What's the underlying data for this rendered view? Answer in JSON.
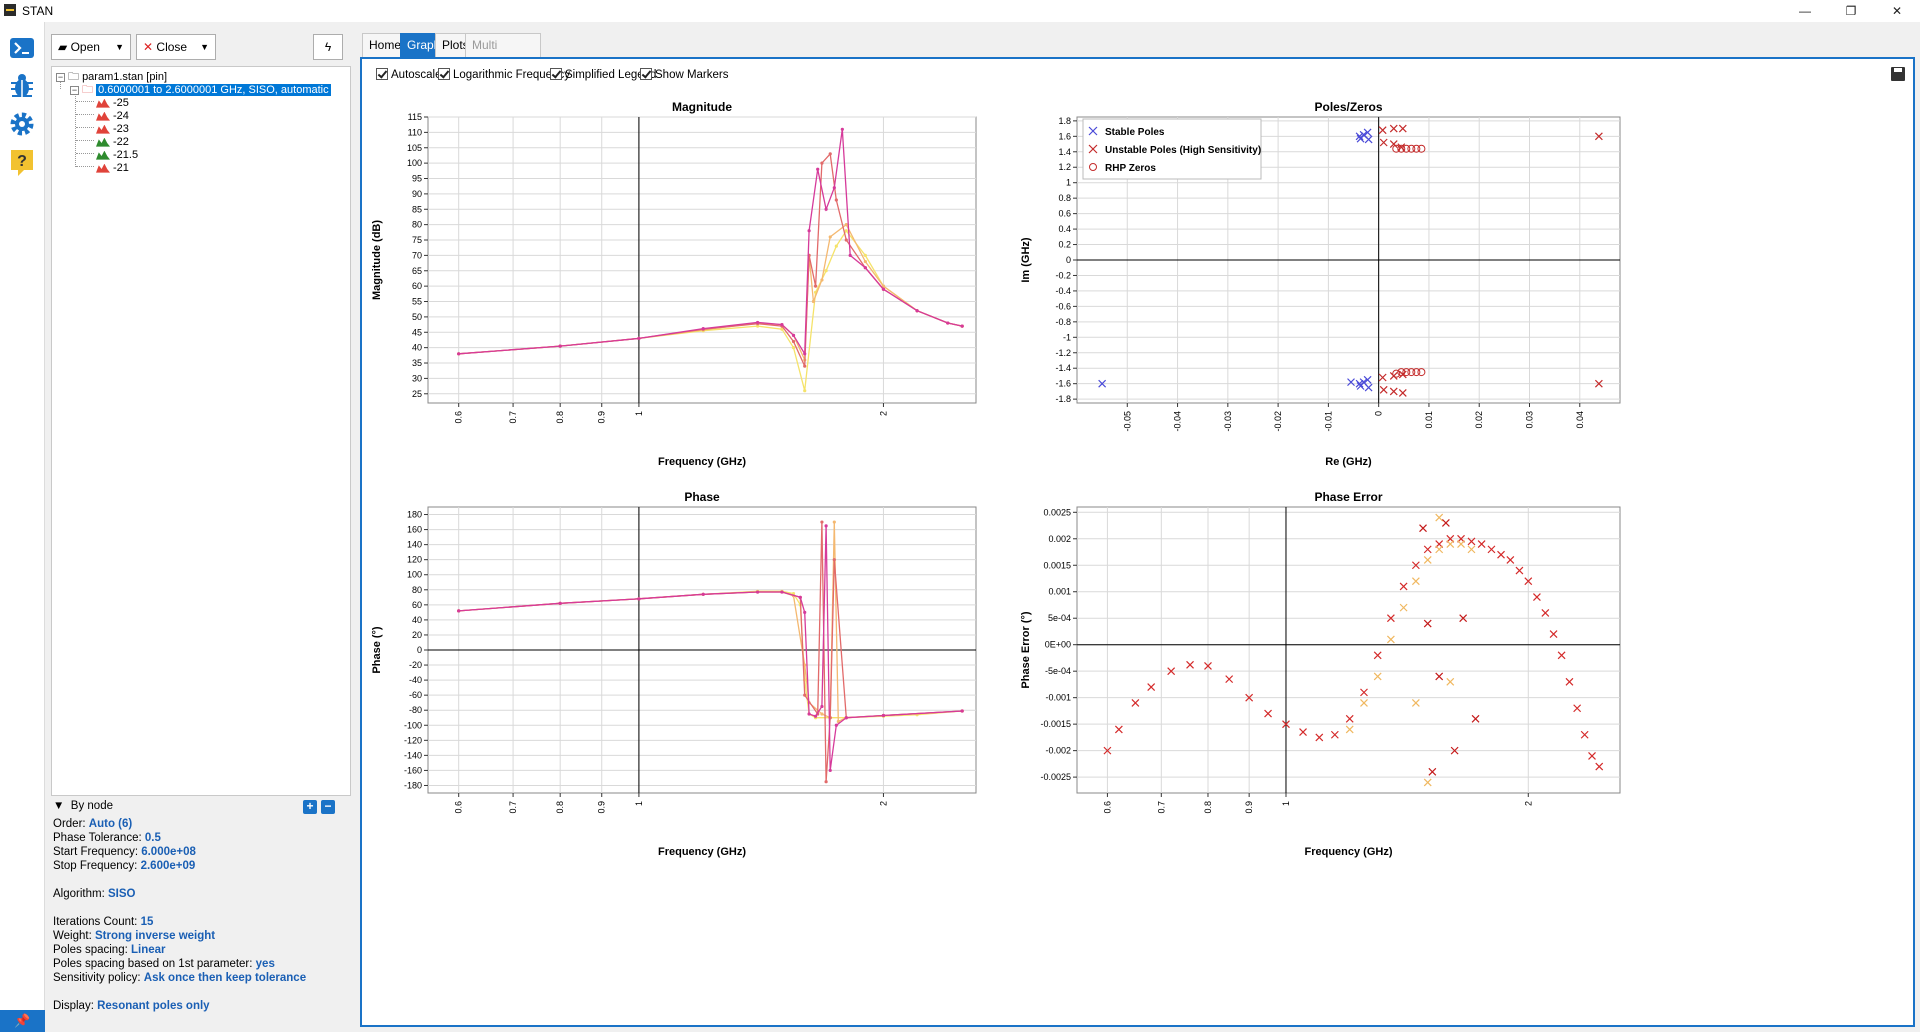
{
  "window": {
    "title": "STAN"
  },
  "toolbar": {
    "open_label": "Open",
    "close_label": "Close"
  },
  "tree": {
    "root_label": "param1.stan [pin]",
    "child_label": "0.6000001 to 2.6000001 GHz, SISO, automatic",
    "leaves": [
      {
        "label": "-25",
        "color": "#e0433a"
      },
      {
        "label": "-24",
        "color": "#e0433a"
      },
      {
        "label": "-23",
        "color": "#e0433a"
      },
      {
        "label": "-22",
        "color": "#2e8b2e"
      },
      {
        "label": "-21.5",
        "color": "#2e8b2e"
      },
      {
        "label": "-21",
        "color": "#e0433a"
      }
    ]
  },
  "filter": {
    "label": "By node"
  },
  "props": {
    "order": {
      "label": "Order:",
      "value": "Auto (6)"
    },
    "phase_tol": {
      "label": "Phase Tolerance:",
      "value": "0.5"
    },
    "start": {
      "label": "Start Frequency:",
      "value": "6.000e+08"
    },
    "stop": {
      "label": "Stop Frequency:",
      "value": "2.600e+09"
    },
    "algorithm": {
      "label": "Algorithm:",
      "value": "SISO"
    },
    "iterations": {
      "label": "Iterations Count:",
      "value": "15"
    },
    "weight": {
      "label": "Weight:",
      "value": "Strong inverse weight"
    },
    "poles_spacing": {
      "label": "Poles spacing:",
      "value": "Linear"
    },
    "poles_first": {
      "label": "Poles spacing based on 1st parameter:",
      "value": "yes"
    },
    "sensitivity": {
      "label": "Sensitivity policy:",
      "value": "Ask once then keep tolerance"
    },
    "display": {
      "label": "Display:",
      "value": "Resonant poles only"
    }
  },
  "tabs": [
    {
      "label": "Home",
      "state": "normal"
    },
    {
      "label": "Graphs",
      "state": "active"
    },
    {
      "label": "Plots",
      "state": "normal"
    },
    {
      "label": "Multi Parameters",
      "state": "disabled"
    }
  ],
  "options": [
    {
      "label": "Autoscale",
      "checked": true
    },
    {
      "label": "Logarithmic Frequency",
      "checked": true
    },
    {
      "label": "Simplified Legend",
      "checked": true
    },
    {
      "label": "Show Markers",
      "checked": true
    }
  ],
  "colors": {
    "accent": "#1a73c7",
    "series": [
      "#f5e36a",
      "#f4b870",
      "#e26a6a",
      "#d63a9a",
      "#c41a1a"
    ]
  },
  "chart_data": [
    {
      "type": "line",
      "title": "Magnitude",
      "xlabel": "Frequency (GHz)",
      "ylabel": "Magnitude (dB)",
      "x_scale": "log",
      "xlim": [
        0.55,
        2.6
      ],
      "ylim": [
        22,
        115
      ],
      "xticks": [
        "0.6",
        "0.7",
        "0.8",
        "0.9",
        "1",
        "2"
      ],
      "xtick_values": [
        0.6,
        0.7,
        0.8,
        0.9,
        1,
        2
      ],
      "yticks": [
        115,
        110,
        105,
        100,
        95,
        90,
        85,
        80,
        75,
        70,
        65,
        60,
        55,
        50,
        45,
        40,
        35,
        30,
        25
      ],
      "grid": true,
      "series": [
        {
          "values_x": [
            0.6,
            0.8,
            1.0,
            1.2,
            1.4,
            1.5,
            1.55,
            1.6,
            1.65,
            1.7,
            1.75,
            1.8,
            1.9,
            2.0,
            2.2,
            2.4,
            2.5
          ],
          "values_y": [
            38,
            40.5,
            43,
            45.5,
            47,
            46,
            40,
            26,
            58,
            65,
            73,
            78,
            70,
            60,
            52,
            48,
            47
          ]
        },
        {
          "values_x": [
            0.6,
            0.8,
            1.0,
            1.2,
            1.4,
            1.5,
            1.55,
            1.6,
            1.62,
            1.64,
            1.68,
            1.72,
            1.8,
            1.9,
            2.0,
            2.2,
            2.4,
            2.5
          ],
          "values_y": [
            38,
            40.5,
            43,
            45.8,
            48,
            47.5,
            44,
            36,
            70,
            55,
            62,
            76,
            80,
            68,
            60,
            52,
            48,
            47
          ]
        },
        {
          "values_x": [
            0.6,
            0.8,
            1.0,
            1.2,
            1.4,
            1.5,
            1.55,
            1.6,
            1.62,
            1.65,
            1.68,
            1.72,
            1.75,
            1.8,
            1.9,
            2.0,
            2.2,
            2.4,
            2.5
          ],
          "values_y": [
            38,
            40.5,
            43,
            46,
            47.8,
            47,
            42,
            34,
            70,
            60,
            100,
            103,
            88,
            75,
            66,
            59,
            52,
            48,
            47
          ]
        },
        {
          "values_x": [
            0.6,
            0.8,
            1.0,
            1.2,
            1.4,
            1.5,
            1.55,
            1.6,
            1.62,
            1.66,
            1.7,
            1.74,
            1.78,
            1.82,
            1.9,
            2.0,
            2.2,
            2.4,
            2.5
          ],
          "values_y": [
            38,
            40.5,
            43,
            46.2,
            48.2,
            47.5,
            44,
            38,
            78,
            98,
            85,
            92,
            111,
            70,
            66,
            59,
            52,
            48,
            47
          ]
        }
      ]
    },
    {
      "type": "scatter",
      "title": "Poles/Zeros",
      "xlabel": "Re (GHz)",
      "ylabel": "Im (GHz)",
      "xlim": [
        -0.06,
        0.048
      ],
      "ylim": [
        -1.85,
        1.85
      ],
      "xticks": [
        -0.05,
        -0.04,
        -0.03,
        -0.02,
        -0.01,
        0,
        0.01,
        0.02,
        0.03,
        0.04
      ],
      "yticks": [
        1.8,
        1.6,
        1.4,
        1.2,
        1,
        0.8,
        0.6,
        0.4,
        0.2,
        0,
        -0.2,
        -0.4,
        -0.6,
        -0.8,
        -1,
        -1.2,
        -1.4,
        -1.6,
        -1.8
      ],
      "ytick_labels": [
        "1.8",
        "1.6",
        "1.4",
        "1.2",
        "1",
        "0.8",
        "0.6",
        "0.4",
        "0.2",
        "0",
        "-0.2",
        "-0.4",
        "-0.6",
        "-0.8",
        "-1",
        "-1.2",
        "-1.4",
        "-1.6",
        "-1.8"
      ],
      "xtick_labels": [
        "-0.05",
        "-0.04",
        "-0.03",
        "-0.02",
        "-0.01",
        "0",
        "0.01",
        "0.02",
        "0.03",
        "0.04"
      ],
      "legend_position": "top-left",
      "grid": true,
      "series": [
        {
          "name": "Stable Poles",
          "marker": "x",
          "color": "#4a4ad8",
          "points": [
            [
              -0.0038,
              1.6
            ],
            [
              -0.0036,
              1.57
            ],
            [
              -0.003,
              1.62
            ],
            [
              -0.0022,
              1.65
            ],
            [
              -0.002,
              1.56
            ],
            [
              -0.0055,
              -1.58
            ],
            [
              -0.0038,
              -1.6
            ],
            [
              -0.0036,
              -1.63
            ],
            [
              -0.003,
              -1.58
            ],
            [
              -0.0022,
              -1.55
            ],
            [
              -0.002,
              -1.65
            ],
            [
              -0.055,
              -1.6
            ]
          ]
        },
        {
          "name": "Unstable Poles (High Sensitivity)",
          "marker": "x",
          "color": "#c42a2a",
          "points": [
            [
              0.0008,
              1.68
            ],
            [
              0.001,
              1.52
            ],
            [
              0.003,
              1.7
            ],
            [
              0.003,
              1.5
            ],
            [
              0.0048,
              1.7
            ],
            [
              0.0045,
              1.46
            ],
            [
              0.0008,
              -1.52
            ],
            [
              0.001,
              -1.68
            ],
            [
              0.003,
              -1.5
            ],
            [
              0.003,
              -1.7
            ],
            [
              0.0048,
              -1.48
            ],
            [
              0.0048,
              -1.72
            ],
            [
              0.0438,
              1.6
            ],
            [
              0.0438,
              -1.6
            ]
          ]
        },
        {
          "name": "RHP Zeros",
          "marker": "o",
          "color": "#c42a2a",
          "points": [
            [
              0.0035,
              1.44
            ],
            [
              0.0045,
              1.44
            ],
            [
              0.0055,
              1.44
            ],
            [
              0.0065,
              1.44
            ],
            [
              0.0075,
              1.44
            ],
            [
              0.0085,
              1.44
            ],
            [
              0.0035,
              -1.47
            ],
            [
              0.0045,
              -1.45
            ],
            [
              0.0055,
              -1.45
            ],
            [
              0.0065,
              -1.45
            ],
            [
              0.0075,
              -1.45
            ],
            [
              0.0085,
              -1.45
            ]
          ]
        }
      ]
    },
    {
      "type": "line",
      "title": "Phase",
      "xlabel": "Frequency (GHz)",
      "ylabel": "Phase (°)",
      "x_scale": "log",
      "xlim": [
        0.55,
        2.6
      ],
      "ylim": [
        -190,
        190
      ],
      "xticks": [
        "0.6",
        "0.7",
        "0.8",
        "0.9",
        "1",
        "2"
      ],
      "xtick_values": [
        0.6,
        0.7,
        0.8,
        0.9,
        1,
        2
      ],
      "yticks": [
        180,
        160,
        140,
        120,
        100,
        80,
        60,
        40,
        20,
        0,
        -20,
        -40,
        -60,
        -80,
        -100,
        -120,
        -140,
        -160,
        -180
      ],
      "grid": true,
      "series": [
        {
          "values_x": [
            0.6,
            0.8,
            1.0,
            1.2,
            1.4,
            1.5,
            1.55,
            1.58,
            1.6,
            1.62,
            1.65,
            1.8,
            2.0,
            2.2,
            2.5
          ],
          "values_y": [
            52,
            62,
            68,
            74,
            78,
            78,
            75,
            60,
            -40,
            -85,
            -90,
            -90,
            -88,
            -86,
            -81
          ]
        },
        {
          "values_x": [
            0.6,
            0.8,
            1.0,
            1.2,
            1.4,
            1.5,
            1.55,
            1.6,
            1.62,
            1.68,
            1.72,
            1.74,
            1.76,
            1.8,
            2.0,
            2.5
          ],
          "values_y": [
            52,
            62,
            68,
            74,
            77,
            77,
            72,
            -20,
            -70,
            -85,
            -90,
            170,
            -95,
            -90,
            -87,
            -81
          ]
        },
        {
          "values_x": [
            0.6,
            0.8,
            1.0,
            1.2,
            1.4,
            1.5,
            1.58,
            1.6,
            1.66,
            1.68,
            1.7,
            1.72,
            1.74,
            1.8,
            2.0,
            2.5
          ],
          "values_y": [
            52,
            62,
            68,
            74,
            77,
            77,
            70,
            -60,
            -85,
            170,
            -175,
            -90,
            120,
            -90,
            -87,
            -81
          ]
        },
        {
          "values_x": [
            0.6,
            0.8,
            1.0,
            1.2,
            1.4,
            1.5,
            1.58,
            1.6,
            1.62,
            1.65,
            1.68,
            1.7,
            1.72,
            1.75,
            1.8,
            2.0,
            2.5
          ],
          "values_y": [
            52,
            62,
            68,
            74,
            77,
            77,
            70,
            50,
            -85,
            -88,
            -75,
            165,
            -160,
            -100,
            -90,
            -87,
            -81
          ]
        }
      ]
    },
    {
      "type": "scatter",
      "title": "Phase Error",
      "xlabel": "Frequency (GHz)",
      "ylabel": "Phase Error (°)",
      "x_scale": "log",
      "xlim": [
        0.55,
        2.6
      ],
      "ylim": [
        -0.0028,
        0.0026
      ],
      "xticks": [
        "0.6",
        "0.7",
        "0.8",
        "0.9",
        "1",
        "2"
      ],
      "xtick_values": [
        0.6,
        0.7,
        0.8,
        0.9,
        1,
        2
      ],
      "yticks": [
        0.0025,
        0.002,
        0.0015,
        0.001,
        0.0005,
        0,
        -0.0005,
        -0.001,
        -0.0015,
        -0.002,
        -0.0025
      ],
      "ytick_labels": [
        "0.0025",
        "0.002",
        "0.0015",
        "0.001",
        "5e-04",
        "0E+00",
        "-5e-04",
        "-0.001",
        "-0.0015",
        "-0.002",
        "-0.0025"
      ],
      "grid": true,
      "series": [
        {
          "marker": "x",
          "color": "#d42a2a",
          "points": [
            [
              0.6,
              -0.002
            ],
            [
              0.62,
              -0.0016
            ],
            [
              0.65,
              -0.0011
            ],
            [
              0.68,
              -0.0008
            ],
            [
              0.72,
              -0.0005
            ],
            [
              0.76,
              -0.00038
            ],
            [
              0.8,
              -0.0004
            ],
            [
              0.85,
              -0.00065
            ],
            [
              0.9,
              -0.001
            ],
            [
              0.95,
              -0.0013
            ],
            [
              1.0,
              -0.0015
            ],
            [
              1.05,
              -0.00165
            ],
            [
              1.1,
              -0.00175
            ],
            [
              1.15,
              -0.0017
            ],
            [
              1.2,
              -0.0014
            ],
            [
              1.25,
              -0.0009
            ],
            [
              1.3,
              -0.0002
            ],
            [
              1.35,
              0.0005
            ],
            [
              1.4,
              0.0011
            ],
            [
              1.45,
              0.0015
            ],
            [
              1.5,
              0.0018
            ],
            [
              1.55,
              0.0019
            ],
            [
              1.6,
              0.002
            ],
            [
              1.65,
              0.002
            ],
            [
              1.7,
              0.00195
            ],
            [
              1.75,
              0.0019
            ],
            [
              1.8,
              0.0018
            ],
            [
              1.85,
              0.0017
            ],
            [
              1.9,
              0.0016
            ],
            [
              1.95,
              0.0014
            ],
            [
              2.0,
              0.0012
            ],
            [
              2.05,
              0.0009
            ],
            [
              2.1,
              0.0006
            ],
            [
              2.15,
              0.0002
            ],
            [
              2.2,
              -0.0002
            ],
            [
              2.25,
              -0.0007
            ],
            [
              2.3,
              -0.0012
            ],
            [
              2.35,
              -0.0017
            ],
            [
              2.4,
              -0.0021
            ],
            [
              2.45,
              -0.0023
            ]
          ]
        },
        {
          "marker": "x",
          "color": "#f0b860",
          "points": [
            [
              1.2,
              -0.0016
            ],
            [
              1.25,
              -0.0011
            ],
            [
              1.3,
              -0.0006
            ],
            [
              1.35,
              0.0001
            ],
            [
              1.4,
              0.0007
            ],
            [
              1.45,
              0.0012
            ],
            [
              1.5,
              0.0016
            ],
            [
              1.55,
              0.0018
            ],
            [
              1.6,
              0.0019
            ],
            [
              1.65,
              0.0019
            ],
            [
              1.7,
              0.0018
            ],
            [
              1.5,
              -0.0026
            ],
            [
              1.55,
              0.0024
            ],
            [
              1.6,
              -0.0007
            ],
            [
              1.45,
              -0.0011
            ]
          ]
        },
        {
          "marker": "x",
          "color": "#c41a1a",
          "points": [
            [
              1.48,
              0.0022
            ],
            [
              1.52,
              -0.0024
            ],
            [
              1.58,
              0.0023
            ],
            [
              1.62,
              -0.002
            ],
            [
              1.66,
              0.0005
            ],
            [
              1.72,
              -0.0014
            ],
            [
              1.5,
              0.0004
            ],
            [
              1.55,
              -0.0006
            ]
          ]
        }
      ]
    }
  ]
}
